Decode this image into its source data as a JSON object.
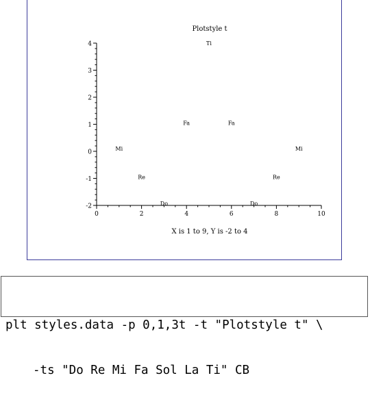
{
  "chart_data": {
    "type": "scatter",
    "title": "Plotstyle t",
    "xlabel": "X is 1 to 9,  Y is -2 to 4",
    "ylabel": "",
    "xlim": [
      0,
      10
    ],
    "ylim": [
      -2,
      4
    ],
    "xticks": [
      "0",
      "2",
      "4",
      "6",
      "8",
      "10"
    ],
    "yticks": [
      "-2",
      "-1",
      "0",
      "1",
      "2",
      "3",
      "4"
    ],
    "points": [
      {
        "x": 1,
        "y": 0.1,
        "label": "Mi"
      },
      {
        "x": 2,
        "y": -0.95,
        "label": "Re"
      },
      {
        "x": 3,
        "y": -1.93,
        "label": "Do"
      },
      {
        "x": 4,
        "y": 1.05,
        "label": "Fa"
      },
      {
        "x": 5,
        "y": 4,
        "label": "Ti"
      },
      {
        "x": 6,
        "y": 1.05,
        "label": "Fa"
      },
      {
        "x": 7,
        "y": -1.93,
        "label": "Do"
      },
      {
        "x": 8,
        "y": -0.95,
        "label": "Re"
      },
      {
        "x": 9,
        "y": 0.1,
        "label": "Mi"
      }
    ],
    "grid": false,
    "colors": {
      "axis": "#000000",
      "frame": "#3a3a9a"
    }
  },
  "command": {
    "line1": "plt styles.data -p 0,1,3t -t \"Plotstyle t\" \\",
    "line2": "-ts \"Do Re Mi Fa Sol La Ti\" CB"
  }
}
